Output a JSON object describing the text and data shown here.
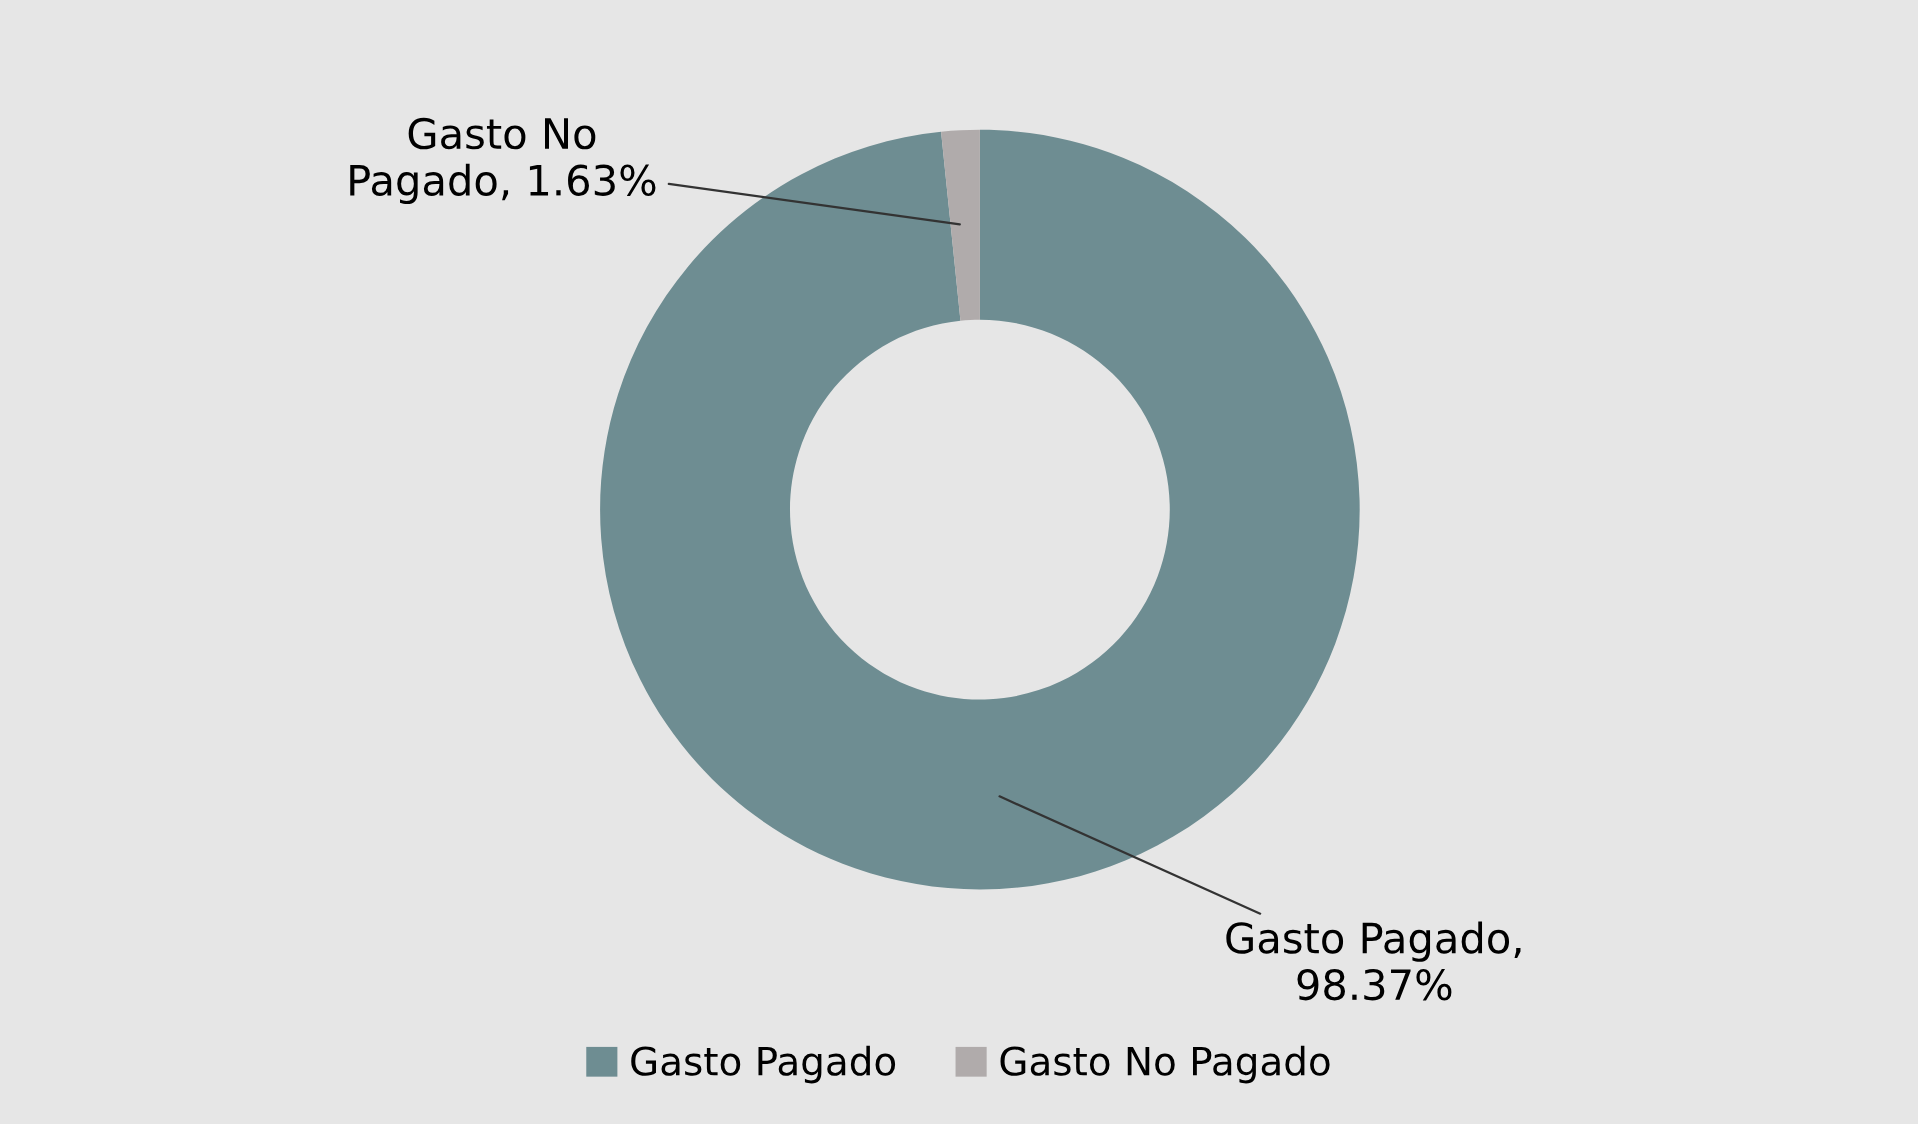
{
  "chart_data": {
    "type": "donut",
    "categories": [
      "Gasto Pagado",
      "Gasto No Pagado"
    ],
    "values": [
      98.37,
      1.63
    ],
    "colors": [
      "#6e8d92",
      "#b0abab"
    ],
    "value_labels": [
      "Gasto Pagado,\n98.37%",
      "Gasto No\nPagado, 1.63%"
    ],
    "legend": "bottom"
  }
}
